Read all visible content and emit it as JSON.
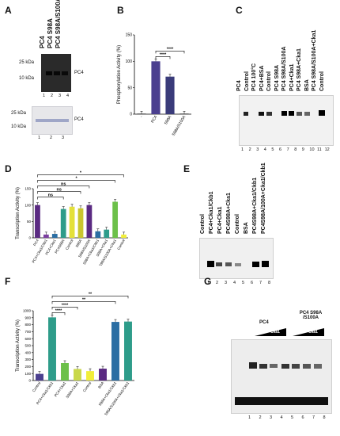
{
  "panels": {
    "A": {
      "letter": "A",
      "top_lanes": [
        "PC4",
        "PC4 S98A",
        "PC4 S98A/S100A"
      ],
      "markers_top": [
        "25 kDa",
        "10 kDa"
      ],
      "band_label": "PC4",
      "lane_numbers": [
        "1",
        "2",
        "3",
        "4"
      ],
      "markers_bottom": [
        "25 kDa",
        "10 kDa"
      ],
      "lane_numbers_bottom": [
        "1",
        "2",
        "3"
      ]
    },
    "B": {
      "letter": "B"
    },
    "C": {
      "letter": "C",
      "lanes": [
        "PC4",
        "Control",
        "PC4 100°C",
        "PC4+BSA",
        "Control",
        "PC4 S98A",
        "PC4 S98A/S100A",
        "PC4+Cka1",
        "PC4 S98A+Cka1",
        "BSA",
        "PC4 S98A/S100A+Cka1",
        "Control"
      ],
      "lane_numbers": [
        "1",
        "2",
        "3",
        "4",
        "5",
        "6",
        "7",
        "8",
        "9",
        "10",
        "11",
        "12"
      ]
    },
    "D": {
      "letter": "D"
    },
    "E": {
      "letter": "E",
      "lanes": [
        "Control",
        "PC4+Cka1/Ckb1",
        "PC4+Cka1",
        "PC4S98A+Cka1",
        "Control",
        "BSA",
        "PC4S98A+Cka1/Ckb1",
        "PC4S98A/100A+Cka1/Ckb1"
      ],
      "lane_numbers": [
        "1",
        "2",
        "3",
        "4",
        "5",
        "6",
        "7",
        "8"
      ]
    },
    "F": {
      "letter": "F"
    },
    "G": {
      "letter": "G",
      "group1": "PC4",
      "group2": "PC4 S98A /S100A",
      "wedge1": "Cka1",
      "wedge2": "Cka1",
      "lane_numbers": [
        "1",
        "2",
        "3",
        "4",
        "5",
        "6",
        "7",
        "8"
      ]
    }
  },
  "chart_data": [
    {
      "panel": "B",
      "type": "bar",
      "ylabel": "Phosphorylation Activity (%)",
      "ylim": [
        0,
        150
      ],
      "yticks": [
        "0",
        "50",
        "100",
        "150"
      ],
      "categories": [
        "-",
        "PC4",
        "S98A",
        "S98A/S100A"
      ],
      "values": [
        1,
        100,
        71,
        1
      ],
      "colors": [
        "#333333",
        "#4b3f8f",
        "#3a3b7a",
        "#333333"
      ],
      "sig": [
        {
          "from": 1,
          "to": 2,
          "label": "****"
        },
        {
          "from": 1,
          "to": 3,
          "label": "****"
        }
      ]
    },
    {
      "panel": "D",
      "type": "bar",
      "ylabel": "Transcription Activity (%)",
      "ylim": [
        0,
        150
      ],
      "yticks": [
        "0",
        "50",
        "100",
        "150"
      ],
      "categories": [
        "PC4",
        "PC4+Cka1/Ckb1",
        "PC4+Cka1",
        "PC4S98A",
        "Control",
        "S98A",
        "S98A/S100A",
        "S98A+Cka1/Ckb1",
        "S98A+Cka1",
        "S98A/S100A+Cka1",
        "Control"
      ],
      "values": [
        100,
        10,
        12,
        88,
        95,
        90,
        100,
        20,
        25,
        110,
        10
      ],
      "colors": [
        "#5a2a82",
        "#7b3fa0",
        "#2b6ea3",
        "#2e9c8a",
        "#e4e03a",
        "#c9c62e",
        "#5a2a82",
        "#2b6ea3",
        "#2e9c8a",
        "#6cc04a",
        "#f1ee3a"
      ],
      "sig": [
        {
          "from": 0,
          "to": 3,
          "label": "ns"
        },
        {
          "from": 0,
          "to": 5,
          "label": "ns"
        },
        {
          "from": 0,
          "to": 6,
          "label": "ns"
        },
        {
          "from": 0,
          "to": 9,
          "label": "*"
        },
        {
          "from": 0,
          "to": 10,
          "label": "*"
        }
      ]
    },
    {
      "panel": "F",
      "type": "bar",
      "ylabel": "Transcription Activity (%)",
      "ylim": [
        0,
        1000
      ],
      "yticks": [
        "0",
        "100",
        "200",
        "300",
        "400",
        "500",
        "600",
        "700",
        "800",
        "900",
        "1000"
      ],
      "categories": [
        "Control",
        "PC4+Cka1/Ckb1",
        "PC4+Cka1",
        "S98A+Cka1",
        "Control",
        "BSA",
        "S98A+Cka1/Ckb1",
        "S98A/S100A+Cka1/Ckb1"
      ],
      "values": [
        95,
        905,
        250,
        165,
        135,
        170,
        840,
        845
      ],
      "colors": [
        "#4b3f8f",
        "#2e9c8a",
        "#6cc04a",
        "#c9d84a",
        "#f1ee3a",
        "#5a2a82",
        "#2b6ea3",
        "#2e9c8a"
      ],
      "sig": [
        {
          "from": 1,
          "to": 2,
          "label": "****"
        },
        {
          "from": 1,
          "to": 3,
          "label": "****"
        },
        {
          "from": 1,
          "to": 6,
          "label": "**"
        },
        {
          "from": 1,
          "to": 7,
          "label": "**"
        }
      ]
    }
  ]
}
